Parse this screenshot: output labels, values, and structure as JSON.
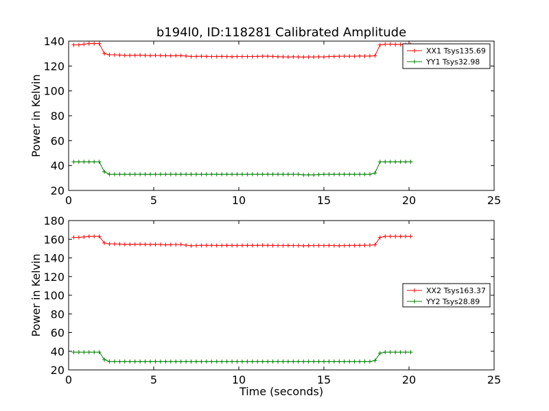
{
  "chart_data": [
    {
      "type": "line",
      "title": "b194l0, ID:118281 Calibrated Amplitude",
      "xlabel": "",
      "ylabel": "Power in Kelvin",
      "xlim": [
        0,
        25
      ],
      "ylim": [
        20,
        140
      ],
      "xticks": [
        "0",
        "5",
        "10",
        "15",
        "20",
        "25"
      ],
      "yticks": [
        "20",
        "40",
        "60",
        "80",
        "100",
        "120",
        "140"
      ],
      "grid": false,
      "legend_position": "top-right",
      "x": [
        0.3,
        0.6,
        0.9,
        1.2,
        1.5,
        1.8,
        2.1,
        2.4,
        2.7,
        3.0,
        3.3,
        3.6,
        3.9,
        4.2,
        4.5,
        4.8,
        5.1,
        5.4,
        5.7,
        6.0,
        6.3,
        6.6,
        6.9,
        7.2,
        7.5,
        7.8,
        8.1,
        8.4,
        8.7,
        9.0,
        9.3,
        9.6,
        9.9,
        10.2,
        10.5,
        10.8,
        11.1,
        11.4,
        11.7,
        12.0,
        12.3,
        12.6,
        12.9,
        13.2,
        13.5,
        13.8,
        14.1,
        14.4,
        14.7,
        15.0,
        15.3,
        15.6,
        15.9,
        16.2,
        16.5,
        16.8,
        17.1,
        17.4,
        17.7,
        18.0,
        18.3,
        18.6,
        18.9,
        19.2,
        19.5,
        19.8,
        20.1
      ],
      "series": [
        {
          "name": "XX1 Tsys135.69",
          "color": "#ff0000",
          "values": [
            137,
            137,
            137.5,
            138,
            138,
            138,
            130,
            129,
            129,
            128.8,
            128.5,
            128.5,
            128.6,
            128.7,
            128.5,
            128.4,
            128.5,
            128.4,
            128.3,
            128.2,
            128.3,
            128.4,
            128,
            127.6,
            127.7,
            127.8,
            127.7,
            127.6,
            127.6,
            127.7,
            127.6,
            127.5,
            127.6,
            127.6,
            127.6,
            127.6,
            127.7,
            127.8,
            127.8,
            127.7,
            127.5,
            127.4,
            127.3,
            127.4,
            127.3,
            127.2,
            127.3,
            127.3,
            127.4,
            127.3,
            127.6,
            127.7,
            127.8,
            127.9,
            127.8,
            127.8,
            128,
            127.9,
            128,
            128.2,
            137,
            137.5,
            137.5,
            137.4,
            137.3,
            137.2,
            137.2
          ]
        },
        {
          "name": "YY1 Tsys32.98",
          "color": "#008000",
          "values": [
            43,
            43,
            43,
            43,
            43,
            43,
            35,
            33,
            33,
            33,
            33,
            33,
            33,
            33,
            33,
            33,
            33,
            33,
            33,
            33,
            33,
            33,
            33,
            33,
            33,
            33,
            33,
            33,
            33,
            33,
            33,
            33,
            33,
            33,
            33,
            33,
            33,
            33,
            33,
            33,
            33,
            33,
            33,
            33,
            33,
            32.5,
            32.5,
            32.5,
            32.8,
            33,
            33,
            33,
            33,
            33,
            33,
            33,
            33,
            33,
            33,
            34,
            43,
            43,
            43,
            43,
            43,
            43,
            43
          ]
        }
      ]
    },
    {
      "type": "line",
      "title": "",
      "xlabel": "Time (seconds)",
      "ylabel": "Power in Kelvin",
      "xlim": [
        0,
        25
      ],
      "ylim": [
        20,
        180
      ],
      "xticks": [
        "0",
        "5",
        "10",
        "15",
        "20",
        "25"
      ],
      "yticks": [
        "20",
        "40",
        "60",
        "80",
        "100",
        "120",
        "140",
        "160",
        "180"
      ],
      "grid": false,
      "legend_position": "center-right",
      "x": [
        0.3,
        0.6,
        0.9,
        1.2,
        1.5,
        1.8,
        2.1,
        2.4,
        2.7,
        3.0,
        3.3,
        3.6,
        3.9,
        4.2,
        4.5,
        4.8,
        5.1,
        5.4,
        5.7,
        6.0,
        6.3,
        6.6,
        6.9,
        7.2,
        7.5,
        7.8,
        8.1,
        8.4,
        8.7,
        9.0,
        9.3,
        9.6,
        9.9,
        10.2,
        10.5,
        10.8,
        11.1,
        11.4,
        11.7,
        12.0,
        12.3,
        12.6,
        12.9,
        13.2,
        13.5,
        13.8,
        14.1,
        14.4,
        14.7,
        15.0,
        15.3,
        15.6,
        15.9,
        16.2,
        16.5,
        16.8,
        17.1,
        17.4,
        17.7,
        18.0,
        18.3,
        18.6,
        18.9,
        19.2,
        19.5,
        19.8,
        20.1
      ],
      "series": [
        {
          "name": "XX2 Tsys163.37",
          "color": "#ff0000",
          "values": [
            162,
            162,
            162.5,
            163,
            163,
            163,
            156,
            155,
            155,
            154.8,
            154.5,
            154.5,
            154.6,
            154.7,
            154.5,
            154.4,
            154.5,
            154.4,
            154,
            154.2,
            154.3,
            154.4,
            153.6,
            153,
            153.2,
            153.4,
            153.4,
            153.4,
            153.3,
            153.3,
            153.4,
            153.3,
            153.3,
            153.3,
            153.4,
            153.3,
            153.4,
            153.5,
            153.4,
            153.3,
            153.2,
            153.2,
            153.3,
            153.2,
            153.2,
            153,
            153.1,
            153.2,
            153.2,
            153.2,
            153.3,
            153.2,
            153,
            153.2,
            153.3,
            153.3,
            153.4,
            153.5,
            153.6,
            154,
            162,
            163,
            163,
            163,
            163,
            163,
            163
          ]
        },
        {
          "name": "YY2 Tsys28.89",
          "color": "#008000",
          "values": [
            39,
            39,
            39,
            39,
            39,
            39,
            31,
            29,
            29,
            29,
            29,
            29,
            29,
            29,
            29,
            29,
            29,
            29,
            29,
            29,
            29,
            29,
            29,
            29,
            29,
            29,
            29,
            29,
            29,
            29,
            29,
            29,
            29,
            29,
            29,
            29,
            29,
            29,
            29,
            29,
            29,
            29,
            29,
            29,
            29,
            29,
            29,
            29,
            29,
            29,
            29,
            29,
            29,
            29,
            29,
            29,
            29,
            29,
            29,
            30,
            38,
            39,
            39,
            39,
            39,
            39,
            39
          ]
        }
      ]
    }
  ]
}
